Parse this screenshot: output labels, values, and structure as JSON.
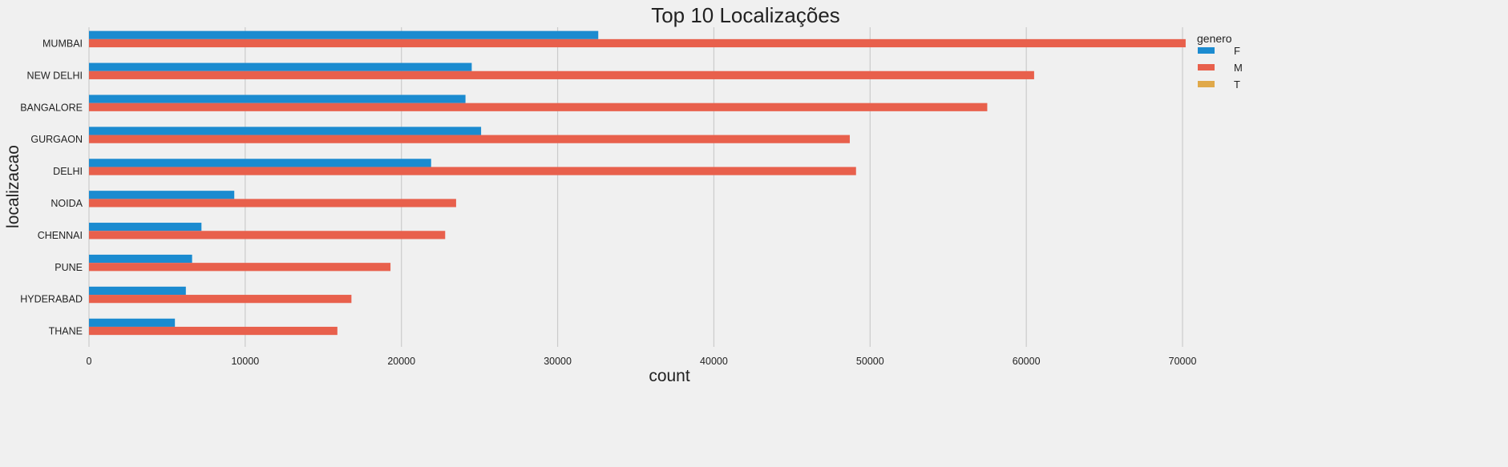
{
  "chart_data": {
    "type": "bar",
    "orientation": "horizontal",
    "title": "Top 10 Localizações",
    "xlabel": "count",
    "ylabel": "localizacao",
    "xlim": [
      0,
      72000
    ],
    "xticks": [
      0,
      10000,
      20000,
      30000,
      40000,
      50000,
      60000,
      70000
    ],
    "grid": true,
    "categories": [
      "MUMBAI",
      "NEW DELHI",
      "BANGALORE",
      "GURGAON",
      "DELHI",
      "NOIDA",
      "CHENNAI",
      "PUNE",
      "HYDERABAD",
      "THANE"
    ],
    "legend": {
      "title": "genero",
      "placement": "top-right"
    },
    "series": [
      {
        "name": "F",
        "color": "#1b8bd0",
        "values": [
          32600,
          24500,
          24100,
          25100,
          21900,
          9300,
          7200,
          6600,
          6200,
          5500
        ]
      },
      {
        "name": "M",
        "color": "#e8604c",
        "values": [
          70200,
          60500,
          57500,
          48700,
          49100,
          23500,
          22800,
          19300,
          16800,
          15900
        ]
      },
      {
        "name": "T",
        "color": "#e0a94a",
        "values": [
          0,
          0,
          0,
          0,
          0,
          0,
          0,
          0,
          0,
          0
        ]
      }
    ]
  }
}
